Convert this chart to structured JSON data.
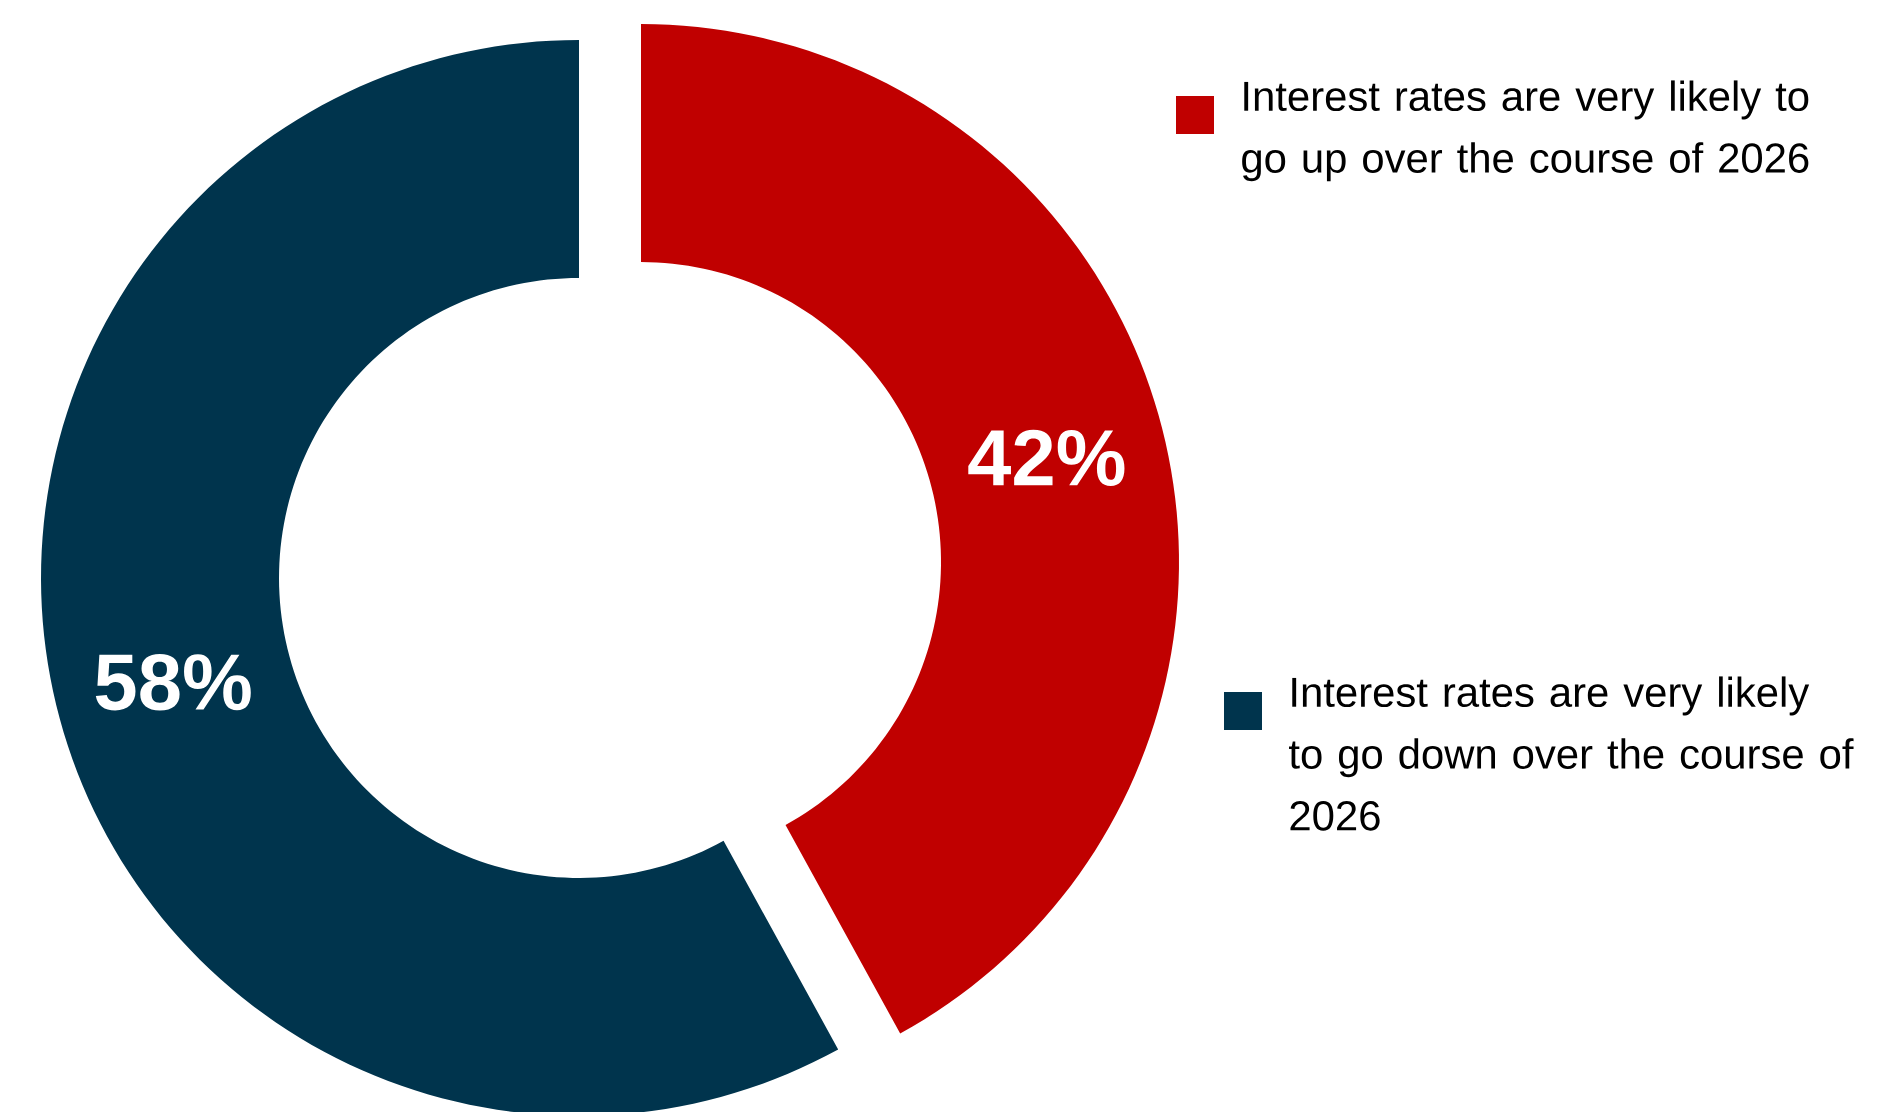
{
  "chart_data": {
    "type": "donut",
    "categories": [
      "Interest rates are very likely to go up over the course of 2026",
      "Interest rates are very likely to go down over the course of 2026"
    ],
    "values": [
      42,
      58
    ],
    "colors": [
      "#c00000",
      "#00344d"
    ],
    "value_labels": [
      "42%",
      "58%"
    ],
    "legend": "right"
  }
}
